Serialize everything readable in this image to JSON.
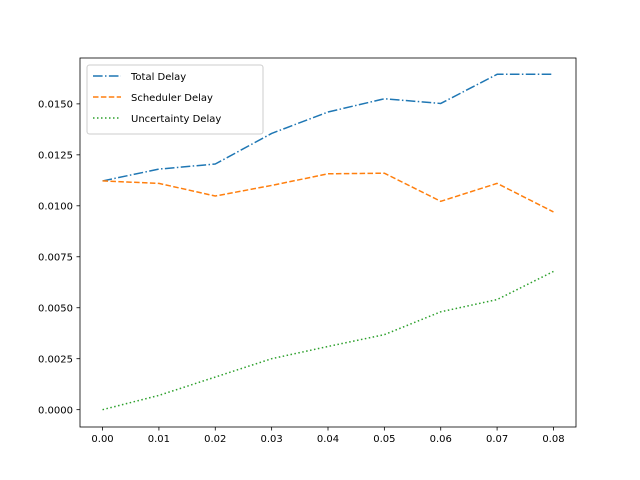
{
  "chart_data": {
    "type": "line",
    "title": "",
    "xlabel": "",
    "ylabel": "",
    "x": [
      0.0,
      0.01,
      0.02,
      0.03,
      0.04,
      0.05,
      0.06,
      0.07,
      0.08
    ],
    "xlim": [
      -0.004,
      0.084
    ],
    "ylim": [
      -0.00085,
      0.01725
    ],
    "xticks": [
      "0.00",
      "0.01",
      "0.02",
      "0.03",
      "0.04",
      "0.05",
      "0.06",
      "0.07",
      "0.08"
    ],
    "yticks": [
      "0.0000",
      "0.0025",
      "0.0050",
      "0.0075",
      "0.0100",
      "0.0125",
      "0.0150"
    ],
    "grid": false,
    "legend_position": "top-left",
    "series": [
      {
        "name": "Total Delay",
        "style": "dashdot",
        "color": "#1f77b4",
        "values": [
          0.01122,
          0.0118,
          0.01205,
          0.01355,
          0.0146,
          0.01525,
          0.01502,
          0.01645,
          0.01645
        ]
      },
      {
        "name": "Scheduler Delay",
        "style": "dashed",
        "color": "#ff7f0e",
        "values": [
          0.01122,
          0.0111,
          0.01048,
          0.011,
          0.01157,
          0.0116,
          0.01022,
          0.0111,
          0.0097
        ]
      },
      {
        "name": "Uncertainty Delay",
        "style": "dotted",
        "color": "#2ca02c",
        "values": [
          0.0,
          0.0007,
          0.0016,
          0.0025,
          0.0031,
          0.00368,
          0.0048,
          0.0054,
          0.00678
        ]
      }
    ]
  }
}
